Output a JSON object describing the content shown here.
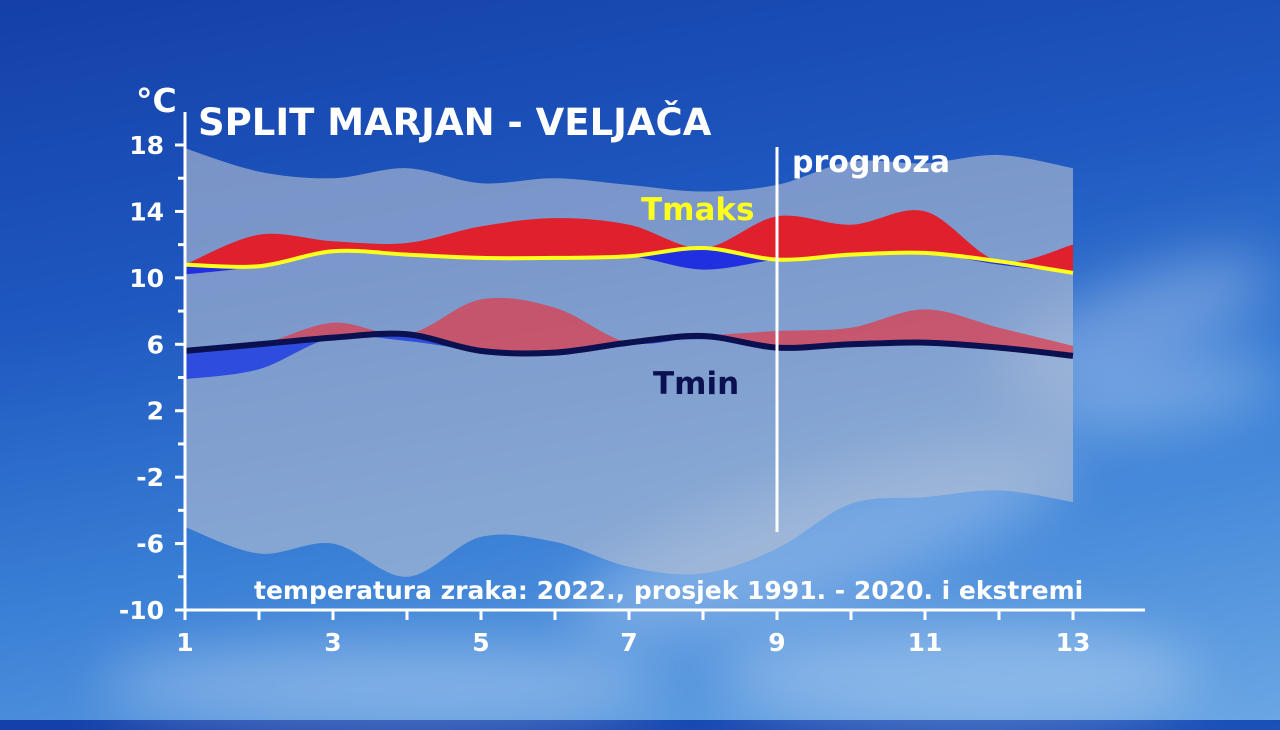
{
  "title": "SPLIT MARJAN - VELJAČA",
  "subtitle": "temperatura zraka: 2022., prosjek 1991. - 2020. i ekstremi",
  "forecast_label": "prognoza",
  "forecast_from_day": 9,
  "colors": {
    "background": "#1e58c0",
    "envelope": "#b4bed2",
    "above_max": "#e0202c",
    "below_max": "#2030e0",
    "above_min": "#e03a48",
    "below_min": "#2040e0",
    "tmaks_line": "#ffff1e",
    "tmin_line": "#0a1050",
    "axis": "#ffffff"
  },
  "chart_data": {
    "type": "area",
    "ylabel": "°C",
    "xlabel": "",
    "xlim": [
      1,
      13
    ],
    "ylim": [
      -10,
      18
    ],
    "x_ticks": [
      1,
      3,
      5,
      7,
      9,
      11,
      13
    ],
    "y_ticks": [
      18,
      14,
      10,
      6,
      2,
      -2,
      -6,
      -10
    ],
    "x": [
      1,
      2,
      3,
      4,
      5,
      6,
      7,
      8,
      9,
      10,
      11,
      12,
      13
    ],
    "series": [
      {
        "name": "Tmaks",
        "average": [
          10.8,
          10.7,
          11.6,
          11.4,
          11.2,
          11.2,
          11.3,
          11.8,
          11.1,
          11.4,
          11.5,
          11.0,
          10.3
        ],
        "actual": [
          10.2,
          12.6,
          12.2,
          12.1,
          13.1,
          13.6,
          13.2,
          10.5,
          13.7,
          13.2,
          14.0,
          10.8,
          12.0
        ]
      },
      {
        "name": "Tmin",
        "average": [
          5.6,
          6.0,
          6.4,
          6.6,
          5.6,
          5.5,
          6.1,
          6.5,
          5.8,
          6.0,
          6.1,
          5.8,
          5.3
        ],
        "actual": [
          3.9,
          4.5,
          7.3,
          6.2,
          8.7,
          8.2,
          6.0,
          6.3,
          6.8,
          7.0,
          8.1,
          7.0,
          5.9
        ]
      }
    ],
    "extremes": {
      "max": [
        17.8,
        16.4,
        16.0,
        16.6,
        15.7,
        16.0,
        15.6,
        15.2,
        15.6,
        17.0,
        16.9,
        17.4,
        16.6
      ],
      "min": [
        -5.0,
        -6.6,
        -6.0,
        -8.0,
        -5.6,
        -5.9,
        -7.4,
        -7.8,
        -6.3,
        -3.6,
        -3.2,
        -2.8,
        -3.5
      ]
    }
  }
}
